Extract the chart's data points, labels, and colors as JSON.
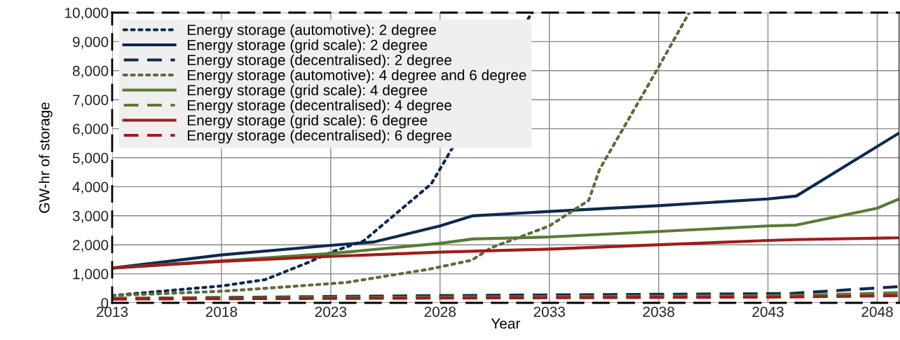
{
  "chart_data": {
    "type": "line",
    "xlabel": "Year",
    "ylabel": "GW-hr of storage",
    "xlim": [
      2013,
      2049
    ],
    "xticks": [
      2013,
      2018,
      2023,
      2028,
      2033,
      2038,
      2043,
      2048
    ],
    "ylim": [
      0,
      10000
    ],
    "yticks": [
      0,
      {
        "value": 1000,
        "label": "1,000"
      },
      {
        "value": 2000,
        "label": "2,000"
      },
      {
        "value": 3000,
        "label": "3,000"
      },
      {
        "value": 4000,
        "label": "4,000"
      },
      {
        "value": 5000,
        "label": "5,000"
      },
      {
        "value": 6000,
        "label": "6,000"
      },
      {
        "value": 7000,
        "label": "7,000"
      },
      {
        "value": 8000,
        "label": "8,000"
      },
      {
        "value": 9000,
        "label": "9,000"
      },
      {
        "value": 10000,
        "label": "10,000"
      }
    ],
    "grid": true,
    "legend": "top left",
    "series": [
      {
        "name": "Energy storage (automotive): 2 degree",
        "color": "#0d2a4f",
        "line_style": "dotted",
        "x": [
          2013,
          2016,
          2018,
          2020,
          2022,
          2023,
          2024.5,
          2027.6,
          2032.2
        ],
        "values": [
          250,
          450,
          580,
          800,
          1400,
          1740,
          2130,
          4100,
          10000
        ]
      },
      {
        "name": "Energy storage (grid scale): 2 degree",
        "color": "#0d2a4f",
        "line_style": "solid",
        "x": [
          2013,
          2018,
          2023,
          2025,
          2028,
          2029.5,
          2033,
          2038,
          2043,
          2044.3,
          2049
        ],
        "values": [
          1200,
          1650,
          1980,
          2100,
          2650,
          3000,
          3150,
          3350,
          3580,
          3680,
          5850
        ]
      },
      {
        "name": "Energy storage (decentralised): 2 degree",
        "color": "#0d2a4f",
        "line_style": "dashed",
        "x": [
          2013,
          2028,
          2044,
          2049
        ],
        "values": [
          150,
          250,
          320,
          560
        ]
      },
      {
        "name": "Energy storage (automotive): 4 degree and 6 degree",
        "color": "#5e6b3a",
        "line_style": "dotted",
        "x": [
          2013,
          2018,
          2020,
          2023.7,
          2027.5,
          2029.45,
          2030.35,
          2033,
          2034.8,
          2035.3,
          2037.6,
          2039.4
        ],
        "values": [
          250,
          400,
          500,
          700,
          1160,
          1470,
          1900,
          2650,
          3530,
          4600,
          7600,
          10000
        ]
      },
      {
        "name": "Energy storage (grid scale): 4 degree",
        "color": "#5b7a35",
        "line_style": "solid",
        "x": [
          2013,
          2018,
          2023,
          2028,
          2029.5,
          2033,
          2037.5,
          2043,
          2044.3,
          2048,
          2049
        ],
        "values": [
          1200,
          1450,
          1700,
          2050,
          2200,
          2270,
          2440,
          2650,
          2680,
          3260,
          3580
        ]
      },
      {
        "name": "Energy storage (decentralised): 4 degree",
        "color": "#5b7a35",
        "line_style": "dashed",
        "x": [
          2013,
          2044,
          2049
        ],
        "values": [
          150,
          250,
          350
        ]
      },
      {
        "name": "Energy storage (grid scale): 6 degree",
        "color": "#a01c1c",
        "line_style": "solid",
        "x": [
          2013,
          2018,
          2023,
          2028,
          2033,
          2038,
          2043,
          2044.3,
          2049
        ],
        "values": [
          1200,
          1430,
          1600,
          1750,
          1850,
          2000,
          2150,
          2180,
          2240
        ]
      },
      {
        "name": "Energy storage (decentralised): 6 degree",
        "color": "#a01c1c",
        "line_style": "dashed",
        "x": [
          2013,
          2044,
          2049
        ],
        "values": [
          130,
          200,
          250
        ]
      }
    ]
  }
}
